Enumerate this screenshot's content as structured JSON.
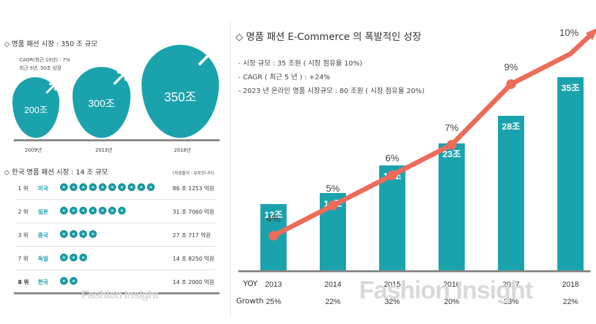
{
  "left": {
    "title": "◇ 명품 패션 시장 : 350 조 규모",
    "note_line1": "CAGR(최근 10년) : 7%",
    "note_line2": "최근 5년, 50조 성장",
    "bubbles": [
      {
        "year": "2009년",
        "value": "200조"
      },
      {
        "year": "2013년",
        "value": "300조"
      },
      {
        "year": "2018년",
        "value": "350조"
      }
    ],
    "korea_title": "◇ 한국 명품 패션 시장 : 14 조 규모",
    "source": "(자료출처 : 유로모니터)",
    "ranks": [
      {
        "rank": "1 위",
        "country": "미국",
        "dots": 10,
        "amount": "86 조 1253 억원"
      },
      {
        "rank": "2 위",
        "country": "일본",
        "dots": 7,
        "amount": "31 조 7060 억원"
      },
      {
        "rank": "3 위",
        "country": "중국",
        "dots": 4,
        "amount": "27 조   717 억원"
      },
      {
        "rank": "7 위",
        "country": "독일",
        "dots": 3,
        "amount": "14 조 8250 억원"
      },
      {
        "rank": "8 위",
        "country": "한국",
        "dots": 2,
        "amount": "14 조 2000 억원"
      }
    ],
    "watermark": "Fashion Insight"
  },
  "right": {
    "title": "◇ 명품 패션 E-Commerce 의 폭발적인 성장",
    "bullets": [
      "- 시장 규모 : 35 조원 ( 시장 점유율 10%)",
      "- CAGR ( 최근 5 년 ) : +24%",
      "- 2023 년 온라인 명품 시장규모 : 80 조원 ( 시장 점유율 20%)"
    ],
    "yoy_label": "YOY",
    "growth_label": "Growth",
    "watermark": "Fashion Insight"
  },
  "colors": {
    "teal": "#1aa3ad",
    "coral": "#ee6b5a",
    "grey": "#9a9a9a"
  },
  "chart_data": {
    "type": "bar",
    "categories": [
      "2013",
      "2014",
      "2015",
      "2016",
      "2017",
      "2018"
    ],
    "values": [
      12,
      14,
      19,
      23,
      28,
      35
    ],
    "value_labels": [
      "12조",
      "14조",
      "19조",
      "23조",
      "28조",
      "35조"
    ],
    "share_labels": [
      "4%",
      "5%",
      "6%",
      "7%",
      "9%",
      "10%"
    ],
    "share": [
      4,
      5,
      6,
      7,
      9,
      10
    ],
    "growth_labels": [
      "25%",
      "22%",
      "32%",
      "20%",
      "23%",
      "22%"
    ]
  }
}
